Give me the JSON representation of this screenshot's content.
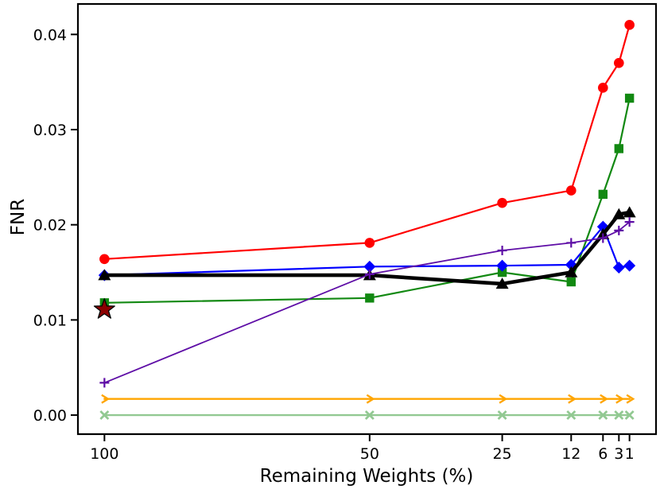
{
  "chart_data": {
    "type": "line",
    "title": "",
    "xlabel": "Remaining Weights (%)",
    "ylabel": "FNR",
    "x": [
      100,
      50,
      25,
      12,
      6,
      3,
      1
    ],
    "x_tick_labels": [
      "100",
      "50",
      "25",
      "12",
      "6",
      "3",
      "1"
    ],
    "y_tick_labels": [
      "0.00",
      "0.01",
      "0.02",
      "0.03",
      "0.04"
    ],
    "y_tick_values": [
      0.0,
      0.01,
      0.02,
      0.03,
      0.04
    ],
    "xlim": [
      105,
      -4
    ],
    "x_axis_style": "linear-reversed",
    "ylim": [
      -0.002,
      0.0432
    ],
    "grid": false,
    "legend": "none",
    "series": [
      {
        "name": "pale-green-x",
        "marker": "x",
        "color": "#92C992",
        "line_width": 2.4,
        "values": [
          0.0,
          0.0,
          0.0,
          0.0,
          0.0,
          0.0,
          0.0
        ]
      },
      {
        "name": "orange-caret",
        "marker": "caret-right",
        "color": "#FFA500",
        "line_width": 2.4,
        "values": [
          0.0017,
          0.0017,
          0.0017,
          0.0017,
          0.0017,
          0.0017,
          0.0017
        ]
      },
      {
        "name": "green-square",
        "marker": "square",
        "color": "#128912",
        "line_width": 2.2,
        "values": [
          0.0118,
          0.0123,
          0.015,
          0.014,
          0.0232,
          0.028,
          0.0333
        ]
      },
      {
        "name": "red-circle",
        "marker": "circle",
        "color": "#FF0000",
        "line_width": 2.2,
        "values": [
          0.0164,
          0.0181,
          0.0223,
          0.0236,
          0.0344,
          0.037,
          0.041
        ]
      },
      {
        "name": "blue-diamond",
        "marker": "diamond",
        "color": "#0000FF",
        "line_width": 2.2,
        "values": [
          0.0147,
          0.0156,
          0.0157,
          0.0158,
          0.0198,
          0.0155,
          0.0157
        ]
      },
      {
        "name": "black-triangle",
        "marker": "triangle-up",
        "color": "#000000",
        "line_width": 4.6,
        "values": [
          0.0147,
          0.0147,
          0.0138,
          0.015,
          0.019,
          0.0211,
          0.0213
        ]
      },
      {
        "name": "purple-plus",
        "marker": "plus",
        "color": "#5E0DA6",
        "line_width": 1.8,
        "values": [
          0.0034,
          0.0148,
          0.0173,
          0.0181,
          0.0186,
          0.0194,
          0.0203
        ]
      }
    ],
    "annotations": [
      {
        "name": "dark-red-star",
        "marker": "star",
        "color": "#8B0000",
        "edge_color": "#000000",
        "x": 100,
        "y": 0.0111
      }
    ]
  }
}
